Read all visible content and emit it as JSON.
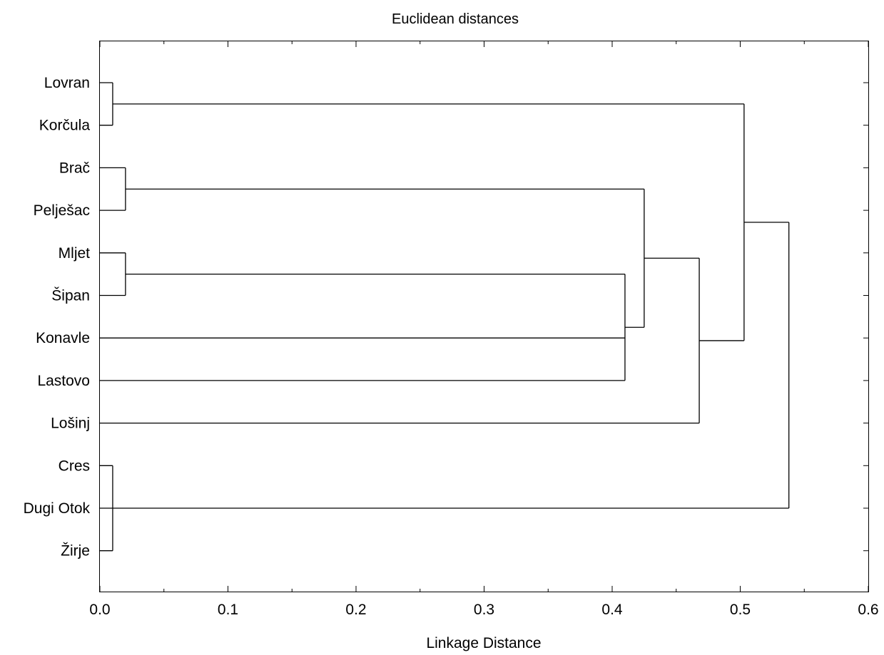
{
  "chart_data": {
    "type": "dendrogram",
    "title": "Euclidean distances",
    "xlabel": "Linkage Distance",
    "xlim": [
      0.0,
      0.6
    ],
    "x_ticks": [
      "0.0",
      "0.1",
      "0.2",
      "0.3",
      "0.4",
      "0.5",
      "0.6"
    ],
    "x_tick_values": [
      0.0,
      0.1,
      0.2,
      0.3,
      0.4,
      0.5,
      0.6
    ],
    "orientation": "horizontal",
    "grid": false,
    "leaves": [
      "Lovran",
      "Korčula",
      "Brač",
      "Pelješac",
      "Mljet",
      "Šipan",
      "Konavle",
      "Lastovo",
      "Lošinj",
      "Cres",
      "Dugi Otok",
      "Žirje"
    ],
    "merges": [
      {
        "id": "c1",
        "children": [
          "Lovran",
          "Korčula"
        ],
        "distance": 0.01
      },
      {
        "id": "c2",
        "children": [
          "Brač",
          "Pelješac"
        ],
        "distance": 0.02
      },
      {
        "id": "c3",
        "children": [
          "Mljet",
          "Šipan"
        ],
        "distance": 0.02
      },
      {
        "id": "c4",
        "children": [
          "Cres",
          "Dugi Otok",
          "Žirje"
        ],
        "distance": 0.01
      },
      {
        "id": "c5",
        "children": [
          "c3",
          "Konavle",
          "Lastovo"
        ],
        "distance": 0.41
      },
      {
        "id": "c6",
        "children": [
          "c2",
          "c5"
        ],
        "distance": 0.425
      },
      {
        "id": "c7",
        "children": [
          "c6",
          "Lošinj"
        ],
        "distance": 0.468
      },
      {
        "id": "c8",
        "children": [
          "c1",
          "c7"
        ],
        "distance": 0.503
      },
      {
        "id": "c9",
        "children": [
          "c8",
          "c4"
        ],
        "distance": 0.538
      }
    ]
  }
}
